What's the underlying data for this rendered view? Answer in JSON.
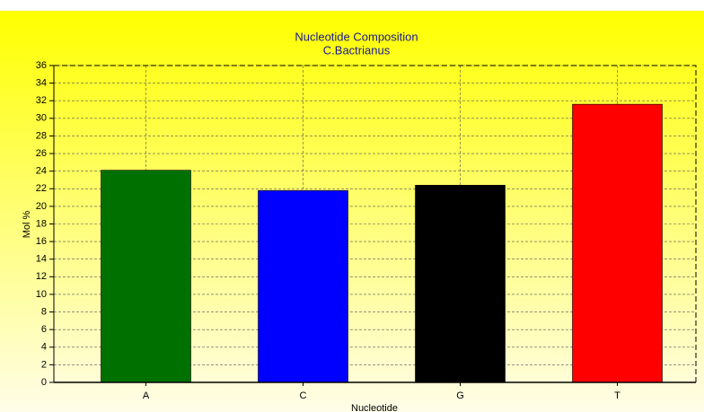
{
  "chart_data": {
    "type": "bar",
    "title": "Nucleotide Composition",
    "subtitle": "C.Bactrianus",
    "x_label": "Nucleotide",
    "y_label": "Mol %",
    "categories": [
      "A",
      "C",
      "G",
      "T"
    ],
    "values": [
      24.1,
      21.8,
      22.4,
      31.6
    ],
    "colors": [
      "#007000",
      "#0000ff",
      "#000000",
      "#ff0000"
    ],
    "ylim": [
      0,
      36
    ],
    "yticks": [
      0,
      2,
      4,
      6,
      8,
      10,
      12,
      14,
      16,
      18,
      20,
      22,
      24,
      26,
      28,
      30,
      32,
      34,
      36
    ],
    "grid": true
  }
}
